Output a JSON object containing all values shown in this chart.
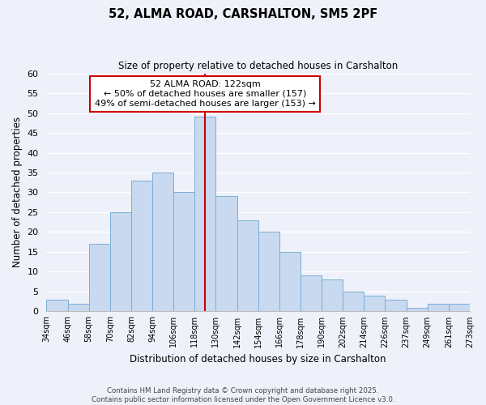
{
  "title": "52, ALMA ROAD, CARSHALTON, SM5 2PF",
  "subtitle": "Size of property relative to detached houses in Carshalton",
  "xlabel": "Distribution of detached houses by size in Carshalton",
  "ylabel": "Number of detached properties",
  "bin_labels": [
    "34sqm",
    "46sqm",
    "58sqm",
    "70sqm",
    "82sqm",
    "94sqm",
    "106sqm",
    "118sqm",
    "130sqm",
    "142sqm",
    "154sqm",
    "166sqm",
    "178sqm",
    "190sqm",
    "202sqm",
    "214sqm",
    "226sqm",
    "237sqm",
    "249sqm",
    "261sqm",
    "273sqm"
  ],
  "bar_values": [
    3,
    2,
    17,
    25,
    33,
    35,
    30,
    49,
    29,
    23,
    20,
    15,
    9,
    8,
    5,
    4,
    3,
    1,
    2,
    2
  ],
  "bar_color": "#c8d9f0",
  "bar_edge_color": "#7aafd4",
  "vline_color": "#cc0000",
  "ylim": [
    0,
    60
  ],
  "annotation_title": "52 ALMA ROAD: 122sqm",
  "annotation_line1": "← 50% of detached houses are smaller (157)",
  "annotation_line2": "49% of semi-detached houses are larger (153) →",
  "annotation_box_color": "#ffffff",
  "annotation_box_edge": "#cc0000",
  "background_color": "#eef1fa",
  "grid_color": "#ffffff",
  "footer_line1": "Contains HM Land Registry data © Crown copyright and database right 2025.",
  "footer_line2": "Contains public sector information licensed under the Open Government Licence v3.0."
}
